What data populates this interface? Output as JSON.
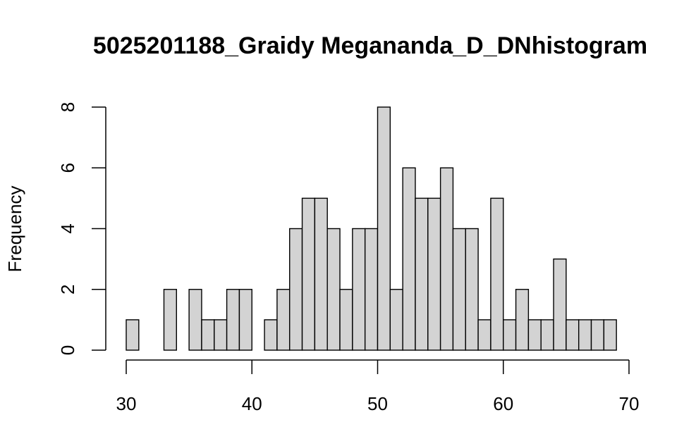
{
  "chart_data": {
    "type": "bar",
    "title": "5025201188_Graidy Megananda_D_DNhistogram",
    "xlabel": "",
    "ylabel": "Frequency",
    "xlim": [
      30,
      70
    ],
    "ylim": [
      0,
      8
    ],
    "bin_width": 1,
    "x_ticks": [
      30,
      40,
      50,
      60,
      70
    ],
    "y_ticks": [
      0,
      2,
      4,
      6,
      8
    ],
    "bin_starts": [
      30,
      31,
      32,
      33,
      34,
      35,
      36,
      37,
      38,
      39,
      40,
      41,
      42,
      43,
      44,
      45,
      46,
      47,
      48,
      49,
      50,
      51,
      52,
      53,
      54,
      55,
      56,
      57,
      58,
      59,
      60,
      61,
      62,
      63,
      64,
      65,
      66,
      67,
      68
    ],
    "values": [
      1,
      0,
      0,
      2,
      0,
      2,
      1,
      1,
      2,
      2,
      0,
      1,
      2,
      4,
      5,
      5,
      4,
      2,
      4,
      4,
      8,
      2,
      6,
      5,
      5,
      6,
      4,
      4,
      1,
      5,
      1,
      2,
      1,
      1,
      3,
      1,
      1,
      1,
      1
    ],
    "grid": false,
    "legend": "none"
  }
}
